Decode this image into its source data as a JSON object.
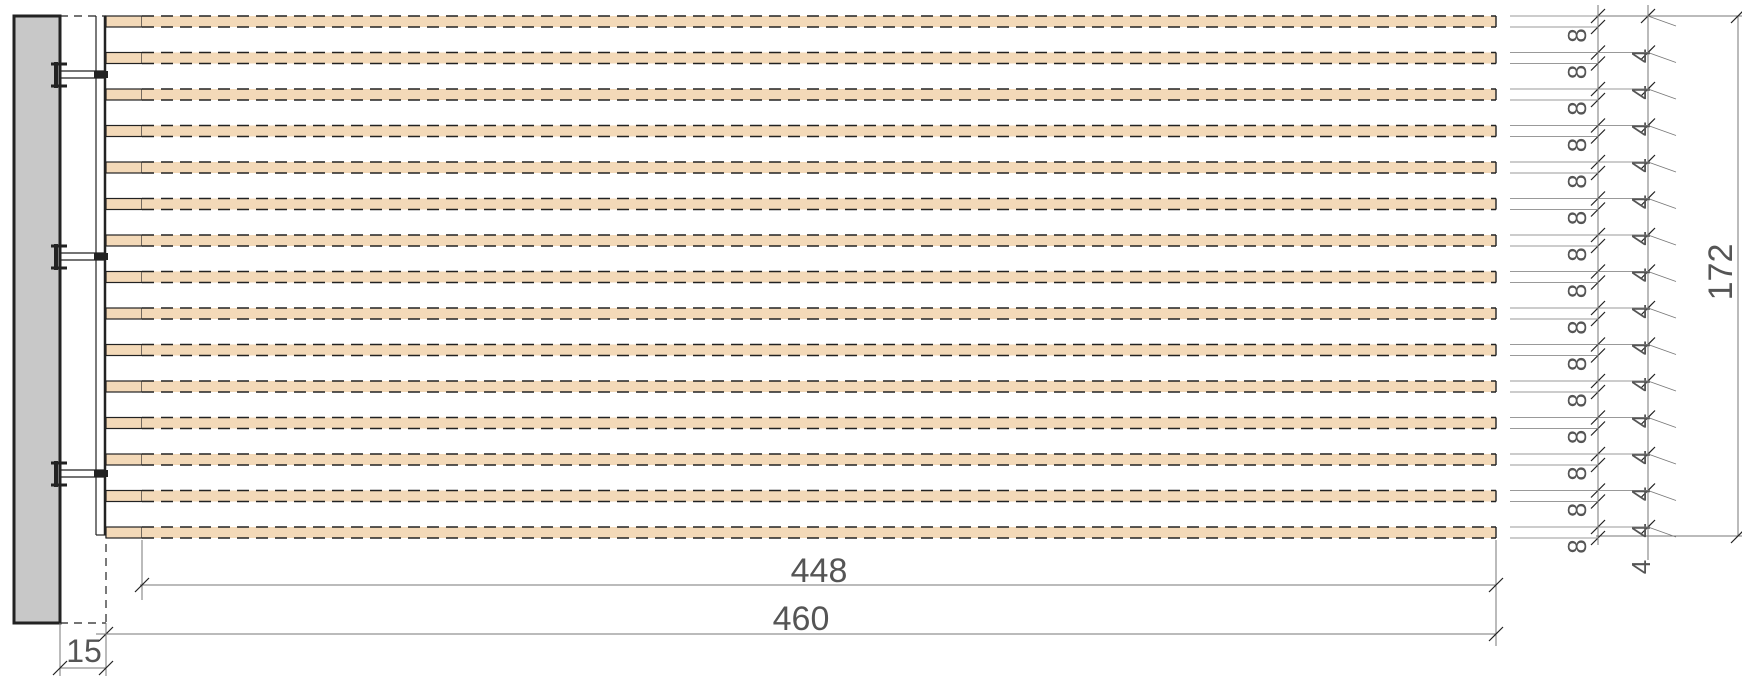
{
  "drawing": {
    "slat_count": 15,
    "bracket_count": 3,
    "dimensions": {
      "inner_length": "448",
      "total_length": "460",
      "wall_offset": "15",
      "total_height": "172",
      "slat_thickness": "8",
      "gap": "4"
    },
    "colors": {
      "slat_fill": "#f3d9b8",
      "wall_fill": "#c8c8c8",
      "line": "#222222",
      "dim_line": "#777777"
    }
  }
}
